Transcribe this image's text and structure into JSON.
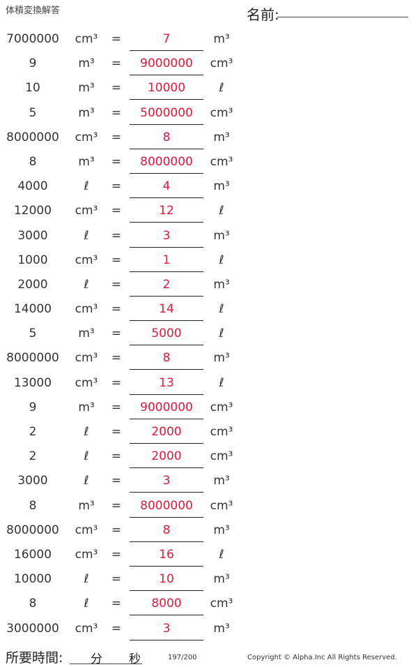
{
  "header": {
    "title": "体積変換解答",
    "name_label": "名前:"
  },
  "rows": [
    {
      "value": "7000000",
      "unit_from": "cm³",
      "equals": "=",
      "answer": "7",
      "unit_to": "m³"
    },
    {
      "value": "9",
      "unit_from": "m³",
      "equals": "=",
      "answer": "9000000",
      "unit_to": "cm³"
    },
    {
      "value": "10",
      "unit_from": "m³",
      "equals": "=",
      "answer": "10000",
      "unit_to": "ℓ"
    },
    {
      "value": "5",
      "unit_from": "m³",
      "equals": "=",
      "answer": "5000000",
      "unit_to": "cm³"
    },
    {
      "value": "8000000",
      "unit_from": "cm³",
      "equals": "=",
      "answer": "8",
      "unit_to": "m³"
    },
    {
      "value": "8",
      "unit_from": "m³",
      "equals": "=",
      "answer": "8000000",
      "unit_to": "cm³"
    },
    {
      "value": "4000",
      "unit_from": "ℓ",
      "equals": "=",
      "answer": "4",
      "unit_to": "m³"
    },
    {
      "value": "12000",
      "unit_from": "cm³",
      "equals": "=",
      "answer": "12",
      "unit_to": "ℓ"
    },
    {
      "value": "3000",
      "unit_from": "ℓ",
      "equals": "=",
      "answer": "3",
      "unit_to": "m³"
    },
    {
      "value": "1000",
      "unit_from": "cm³",
      "equals": "=",
      "answer": "1",
      "unit_to": "ℓ"
    },
    {
      "value": "2000",
      "unit_from": "ℓ",
      "equals": "=",
      "answer": "2",
      "unit_to": "m³"
    },
    {
      "value": "14000",
      "unit_from": "cm³",
      "equals": "=",
      "answer": "14",
      "unit_to": "ℓ"
    },
    {
      "value": "5",
      "unit_from": "m³",
      "equals": "=",
      "answer": "5000",
      "unit_to": "ℓ"
    },
    {
      "value": "8000000",
      "unit_from": "cm³",
      "equals": "=",
      "answer": "8",
      "unit_to": "m³"
    },
    {
      "value": "13000",
      "unit_from": "cm³",
      "equals": "=",
      "answer": "13",
      "unit_to": "ℓ"
    },
    {
      "value": "9",
      "unit_from": "m³",
      "equals": "=",
      "answer": "9000000",
      "unit_to": "cm³"
    },
    {
      "value": "2",
      "unit_from": "ℓ",
      "equals": "=",
      "answer": "2000",
      "unit_to": "cm³"
    },
    {
      "value": "2",
      "unit_from": "ℓ",
      "equals": "=",
      "answer": "2000",
      "unit_to": "cm³"
    },
    {
      "value": "3000",
      "unit_from": "ℓ",
      "equals": "=",
      "answer": "3",
      "unit_to": "m³"
    },
    {
      "value": "8",
      "unit_from": "m³",
      "equals": "=",
      "answer": "8000000",
      "unit_to": "cm³"
    },
    {
      "value": "8000000",
      "unit_from": "cm³",
      "equals": "=",
      "answer": "8",
      "unit_to": "m³"
    },
    {
      "value": "16000",
      "unit_from": "cm³",
      "equals": "=",
      "answer": "16",
      "unit_to": "ℓ"
    },
    {
      "value": "10000",
      "unit_from": "ℓ",
      "equals": "=",
      "answer": "10",
      "unit_to": "m³"
    },
    {
      "value": "8",
      "unit_from": "ℓ",
      "equals": "=",
      "answer": "8000",
      "unit_to": "cm³"
    },
    {
      "value": "3000000",
      "unit_from": "cm³",
      "equals": "=",
      "answer": "3",
      "unit_to": "m³"
    }
  ],
  "footer": {
    "time_label": "所要時間:",
    "minutes": "分",
    "seconds": "秒",
    "page": "197/200",
    "copyright": "Copyright © Alpha.Inc All Rights Reserved."
  },
  "colors": {
    "answer": "#e6163a",
    "text": "#333333"
  }
}
